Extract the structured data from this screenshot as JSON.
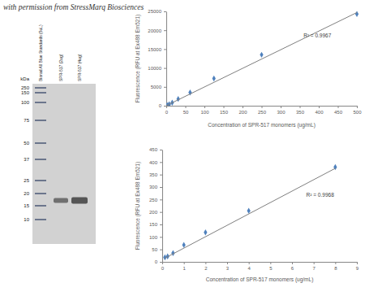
{
  "caption": "with permission from StressMarq Biosciences",
  "gel": {
    "kda_label": "kDa",
    "markers": [
      250,
      150,
      100,
      75,
      50,
      37,
      25,
      20,
      15,
      10
    ],
    "lanes": [
      {
        "label": "Biorad All Blue Standards (5uL)"
      },
      {
        "label": "SPR-517 (2ug)",
        "band_kda": 17
      },
      {
        "label": "SPR-517 (4ug)",
        "band_kda": 17
      }
    ]
  },
  "chart_data": [
    {
      "type": "scatter",
      "xlabel": "Concentration of SPR-517 monomers (ug/mL)",
      "ylabel": "Fluorescence (RFU at Ex488 Em521)",
      "annotations": [
        "R² = 0.9967"
      ],
      "xlim": [
        0,
        500
      ],
      "xticks": [
        0,
        50,
        100,
        150,
        200,
        250,
        300,
        350,
        400,
        450,
        500
      ],
      "ylim": [
        0,
        25000
      ],
      "yticks": [
        0,
        5000,
        10000,
        15000,
        20000,
        25000
      ],
      "grid": false,
      "series": [
        {
          "type": "scatter",
          "marker": "diamond",
          "color": "#4f81bd",
          "x": [
            0,
            3.9,
            7.8,
            15.6,
            31.25,
            62.5,
            125,
            250,
            500
          ],
          "values": [
            50,
            150,
            380,
            800,
            1800,
            3500,
            7200,
            13500,
            24300
          ]
        },
        {
          "type": "line",
          "line_style": "solid",
          "color": "#7f7f7f",
          "x": [
            0,
            500
          ],
          "values": [
            30,
            24700
          ]
        }
      ]
    },
    {
      "type": "scatter",
      "xlabel": "Concentration of SPR-517 monomers (ug/mL)",
      "ylabel": "Fluorescence (RFU at Ex488 Em521)",
      "annotations": [
        "R² = 0.9968"
      ],
      "xlim": [
        0,
        9
      ],
      "xticks": [
        0,
        1,
        2,
        3,
        4,
        5,
        6,
        7,
        8,
        9
      ],
      "ylim": [
        0,
        450
      ],
      "yticks": [
        0,
        50,
        100,
        150,
        200,
        250,
        300,
        350,
        400,
        450
      ],
      "grid": false,
      "series": [
        {
          "type": "scatter",
          "marker": "diamond",
          "color": "#4f81bd",
          "x": [
            0.125,
            0.25,
            0.5,
            1,
            2,
            4,
            8
          ],
          "values": [
            18,
            22,
            35,
            68,
            118,
            205,
            380
          ]
        },
        {
          "type": "line",
          "line_style": "solid",
          "color": "#7f7f7f",
          "x": [
            0.125,
            8
          ],
          "values": [
            15,
            375
          ]
        }
      ]
    }
  ]
}
